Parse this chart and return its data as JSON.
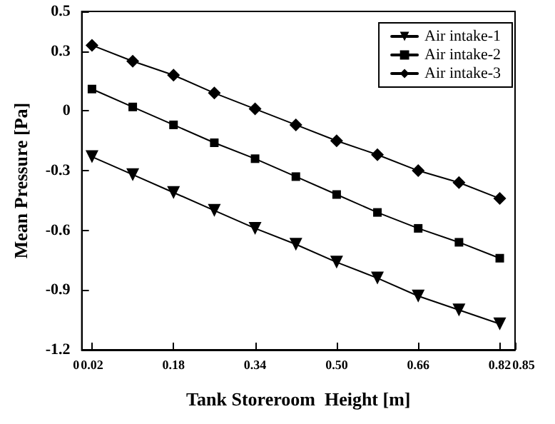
{
  "chart_data": {
    "type": "line",
    "xlabel": "Tank Storeroom  Height [m]",
    "ylabel": "Mean Pressure [Pa]",
    "x": [
      0.02,
      0.1,
      0.18,
      0.26,
      0.34,
      0.42,
      0.5,
      0.58,
      0.66,
      0.74,
      0.82
    ],
    "series": [
      {
        "name": "Air intake-1",
        "color": "#000000",
        "marker": "triangle",
        "values": [
          -0.23,
          -0.32,
          -0.41,
          -0.5,
          -0.59,
          -0.67,
          -0.76,
          -0.84,
          -0.93,
          -1.0,
          -1.07
        ]
      },
      {
        "name": "Air intake-2",
        "color": "#000000",
        "marker": "square",
        "values": [
          0.11,
          0.02,
          -0.07,
          -0.16,
          -0.24,
          -0.33,
          -0.42,
          -0.51,
          -0.59,
          -0.66,
          -0.74
        ]
      },
      {
        "name": "Air intake-3",
        "color": "#000000",
        "marker": "diamond",
        "values": [
          0.33,
          0.25,
          0.18,
          0.09,
          0.01,
          -0.07,
          -0.15,
          -0.22,
          -0.3,
          -0.36,
          -0.44
        ]
      }
    ],
    "xlim": [
      0,
      0.85
    ],
    "ylim": [
      -1.2,
      0.5
    ],
    "xticks": [
      0,
      0.02,
      0.18,
      0.34,
      {
        "value": 0.5,
        "label": "0.50"
      },
      0.66,
      0.82,
      0.85
    ],
    "yticks": [
      -1.2,
      -0.9,
      -0.6,
      -0.3,
      0,
      0.3,
      0.5
    ],
    "legend": "top right",
    "line_style": "solid"
  }
}
